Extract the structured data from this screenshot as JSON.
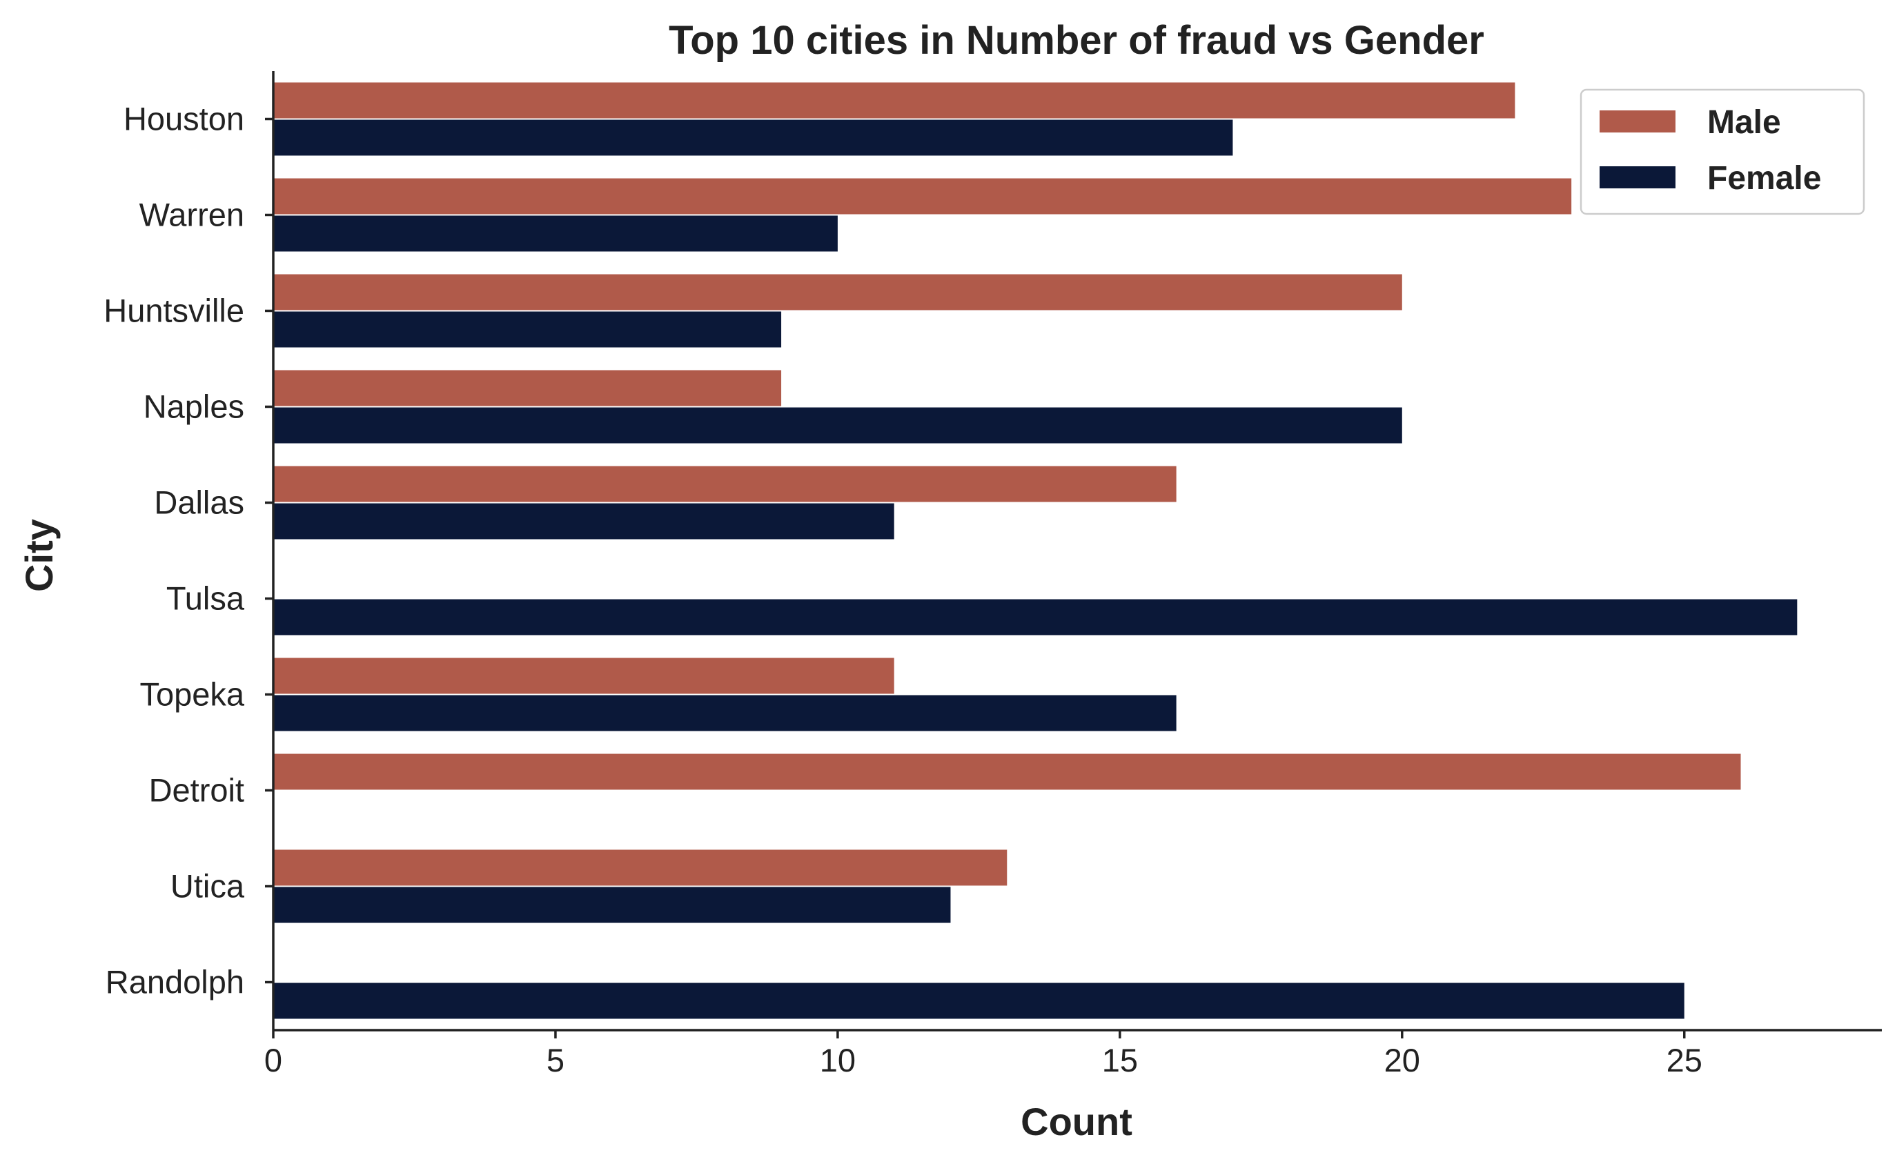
{
  "chart_data": {
    "type": "bar",
    "orientation": "horizontal",
    "title": "Top 10 cities in Number of fraud vs Gender",
    "xlabel": "Count",
    "ylabel": "City",
    "categories": [
      "Houston",
      "Warren",
      "Huntsville",
      "Naples",
      "Dallas",
      "Tulsa",
      "Topeka",
      "Detroit",
      "Utica",
      "Randolph"
    ],
    "series": [
      {
        "name": "Male",
        "color": "#b05a4a",
        "values": [
          22,
          23,
          20,
          9,
          16,
          0,
          11,
          26,
          13,
          0
        ]
      },
      {
        "name": "Female",
        "color": "#0b1838",
        "values": [
          17,
          10,
          9,
          20,
          11,
          27,
          16,
          0,
          12,
          25
        ]
      }
    ],
    "xlim": [
      0,
      28.5
    ],
    "xticks": [
      0,
      5,
      10,
      15,
      20,
      25
    ],
    "grid": false,
    "legend_position": "top-right"
  }
}
